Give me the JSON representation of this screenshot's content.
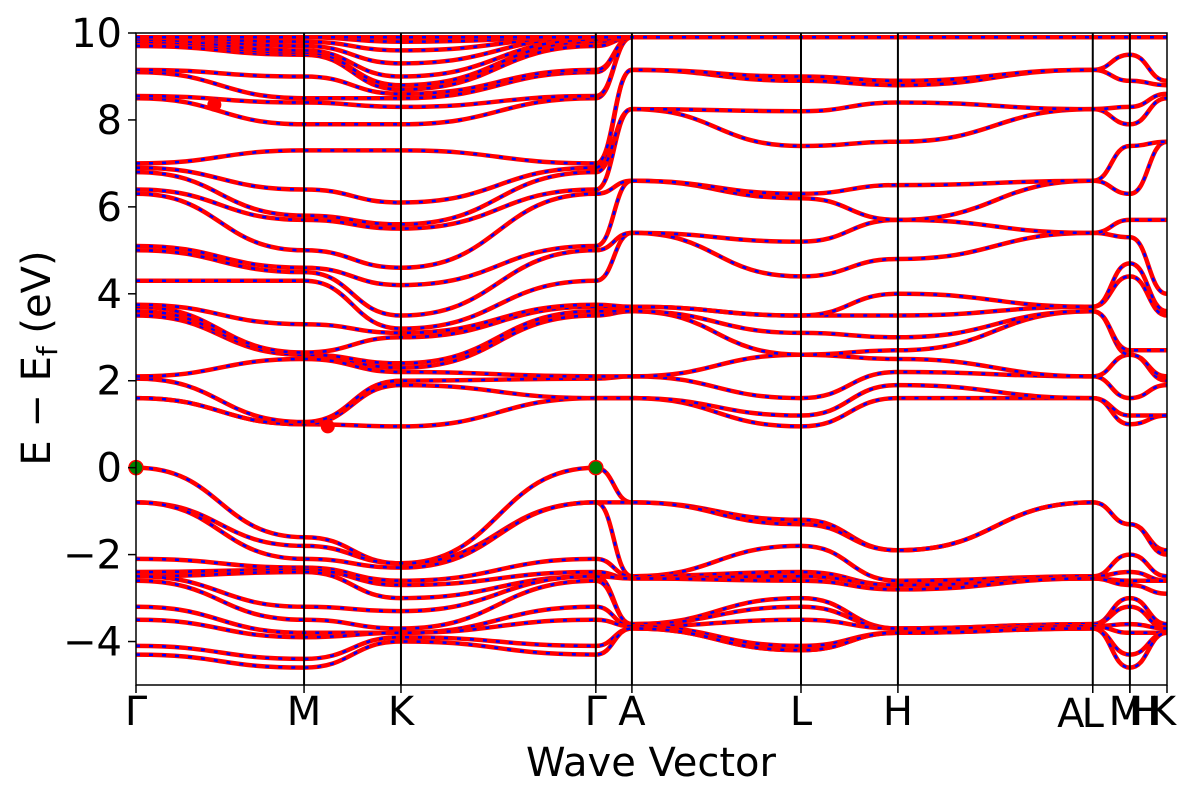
{
  "chart_data": {
    "type": "line",
    "xlabel": "Wave Vector",
    "ylabel": {
      "text": "E − E",
      "subscript": "f",
      "unit": " (eV)"
    },
    "ylim": [
      -5,
      10
    ],
    "yticks": [
      -4,
      -2,
      0,
      2,
      4,
      6,
      8,
      10
    ],
    "ytick_labels": [
      "−4",
      "−2",
      "0",
      "2",
      "4",
      "6",
      "8",
      "10"
    ],
    "xlim": [
      0,
      1
    ],
    "grid": false,
    "legend": "none",
    "colors": {
      "band": "#ff0000",
      "band_overlay": "#0000ff",
      "extremum": "#008000",
      "kpath_line": "#000000"
    },
    "kpoints": [
      {
        "label": "Γ",
        "x": 0.0
      },
      {
        "label": "M",
        "x": 0.163
      },
      {
        "label": "K",
        "x": 0.257
      },
      {
        "label": "Γ",
        "x": 0.446
      },
      {
        "label": "A",
        "x": 0.481
      },
      {
        "label": "L",
        "x": 0.645
      },
      {
        "label": "H",
        "x": 0.739
      },
      {
        "label": "A",
        "x": 0.928
      },
      {
        "label": "L",
        "x": 0.928
      },
      {
        "label": "M",
        "x": 0.964
      },
      {
        "label": "H",
        "x": 0.964
      },
      {
        "label": "K",
        "x": 1.0
      }
    ],
    "kpath_lines_x": [
      0.163,
      0.257,
      0.446,
      0.481,
      0.645,
      0.739,
      0.928,
      0.964
    ],
    "kpath_segments": [
      [
        0,
        0.481
      ],
      [
        0.481,
        0.928
      ],
      [
        0.928,
        0.964
      ],
      [
        0.964,
        1.0
      ]
    ],
    "band_groups": [
      {
        "name": "valence",
        "count": 12,
        "range": [
          -4.6,
          0
        ]
      },
      {
        "name": "conduction",
        "count": 30,
        "range": [
          0.9,
          9.9
        ]
      }
    ],
    "extrema_points": [
      {
        "x": 0.0,
        "y": 0.0
      },
      {
        "x": 0.446,
        "y": 0.0
      }
    ],
    "highlight_points": [
      {
        "x": 0.186,
        "y": 0.95
      },
      {
        "x": 0.076,
        "y": 8.35
      }
    ],
    "band_values_at_kpoints": {
      "valence": [
        [
          0.0,
          -0.8,
          -0.8,
          -2.1,
          -2.4,
          -2.5,
          -2.5,
          -2.6,
          -3.2,
          -3.5,
          -4.1,
          -4.3
        ],
        [
          -1.6,
          -1.8,
          -2.1,
          -2.3,
          -2.35,
          -2.4,
          -3.2,
          -3.5,
          -3.8,
          -3.9,
          -4.4,
          -4.6
        ],
        [
          -2.2,
          -2.2,
          -2.3,
          -2.6,
          -2.7,
          -3.0,
          -3.3,
          -3.7,
          -3.8,
          -3.8,
          -3.9,
          -4.0
        ],
        [
          0.0,
          -0.8,
          -0.8,
          -2.1,
          -2.4,
          -2.5,
          -2.5,
          -2.6,
          -3.2,
          -3.5,
          -4.1,
          -4.3
        ],
        [
          -0.8,
          -0.8,
          -2.5,
          -2.5,
          -2.55,
          -2.55,
          -3.6,
          -3.6,
          -3.65,
          -3.65,
          -3.7,
          -3.7
        ],
        [
          -1.2,
          -1.3,
          -1.8,
          -2.4,
          -2.5,
          -2.6,
          -3.0,
          -3.2,
          -3.5,
          -4.1,
          -4.2,
          -4.2
        ],
        [
          -1.9,
          -1.9,
          -2.6,
          -2.7,
          -2.7,
          -2.8,
          -3.7,
          -3.7,
          -3.7,
          -3.8,
          -3.8,
          -3.8
        ],
        [
          -0.8,
          -0.8,
          -2.5,
          -2.5,
          -2.55,
          -2.55,
          -3.6,
          -3.6,
          -3.65,
          -3.65,
          -3.7,
          -3.7
        ],
        [
          -1.3,
          -1.3,
          -2.0,
          -2.4,
          -2.6,
          -2.7,
          -3.0,
          -3.2,
          -3.6,
          -3.8,
          -4.3,
          -4.6
        ],
        [
          -1.9,
          -2.0,
          -2.5,
          -2.6,
          -2.6,
          -2.9,
          -3.6,
          -3.7,
          -3.7,
          -3.8,
          -3.8,
          -3.8
        ]
      ],
      "conduction": [
        [
          1.6,
          1.6,
          2.05,
          2.1,
          3.5,
          3.6,
          3.7,
          3.75,
          4.3,
          5.0,
          5.1,
          6.3,
          6.4,
          6.8,
          6.9,
          7.0,
          8.5,
          8.55,
          9.1,
          9.15,
          9.7,
          9.8,
          9.85,
          9.9,
          9.9,
          9.9,
          9.9,
          9.9,
          9.9,
          9.9
        ],
        [
          1.0,
          1.0,
          1.05,
          2.5,
          2.6,
          2.6,
          2.65,
          3.3,
          4.3,
          4.5,
          4.6,
          5.0,
          5.7,
          5.8,
          6.4,
          7.3,
          7.9,
          8.4,
          8.5,
          9.0,
          9.5,
          9.55,
          9.6,
          9.7,
          9.8,
          9.9,
          9.9,
          9.9,
          9.9,
          9.9
        ],
        [
          0.95,
          1.9,
          2.0,
          2.2,
          2.3,
          2.4,
          3.0,
          3.1,
          3.2,
          3.5,
          4.2,
          4.6,
          5.5,
          5.6,
          6.1,
          7.3,
          7.9,
          8.3,
          8.5,
          8.6,
          8.7,
          8.8,
          9.0,
          9.3,
          9.6,
          9.8,
          9.9,
          9.9,
          9.9,
          9.9
        ],
        [
          1.6,
          1.6,
          2.05,
          2.1,
          3.5,
          3.6,
          3.7,
          3.75,
          4.3,
          5.0,
          5.1,
          6.3,
          6.4,
          6.8,
          6.9,
          7.0,
          8.5,
          8.55,
          9.1,
          9.15,
          9.7,
          9.8,
          9.85,
          9.9,
          9.9,
          9.9,
          9.9,
          9.9,
          9.9,
          9.9
        ],
        [
          1.6,
          1.6,
          2.1,
          2.1,
          3.6,
          3.6,
          3.7,
          3.7,
          5.4,
          5.4,
          6.6,
          6.6,
          8.25,
          8.25,
          9.15,
          9.15,
          9.9,
          9.9,
          9.9,
          9.9,
          9.9,
          9.9,
          9.9,
          9.9,
          9.9,
          9.9,
          9.9,
          9.9,
          9.9,
          9.9
        ],
        [
          0.95,
          1.2,
          1.6,
          2.6,
          2.6,
          3.1,
          3.5,
          3.5,
          4.4,
          5.2,
          6.2,
          6.3,
          7.4,
          8.2,
          8.9,
          9.0,
          9.9,
          9.9,
          9.9,
          9.9,
          9.9,
          9.9,
          9.9,
          9.9,
          9.9,
          9.9,
          9.9,
          9.9,
          9.9,
          9.9
        ],
        [
          1.6,
          1.9,
          2.2,
          2.5,
          2.7,
          3.0,
          3.5,
          4.0,
          4.8,
          5.7,
          5.7,
          6.5,
          7.5,
          8.4,
          8.8,
          8.9,
          9.9,
          9.9,
          9.9,
          9.9,
          9.9,
          9.9,
          9.9,
          9.9,
          9.9,
          9.9,
          9.9,
          9.9,
          9.9,
          9.9
        ],
        [
          1.6,
          1.6,
          2.1,
          2.1,
          3.6,
          3.6,
          3.7,
          3.7,
          5.4,
          5.4,
          6.6,
          6.6,
          8.25,
          8.25,
          9.15,
          9.15,
          9.9,
          9.9,
          9.9,
          9.9,
          9.9,
          9.9,
          9.9,
          9.9,
          9.9,
          9.9,
          9.9,
          9.9,
          9.9,
          9.9
        ],
        [
          1.0,
          1.2,
          1.6,
          2.6,
          2.6,
          2.7,
          4.4,
          4.7,
          5.3,
          5.7,
          6.3,
          7.4,
          7.9,
          8.3,
          8.9,
          9.5,
          9.9,
          9.9,
          9.9,
          9.9,
          9.9,
          9.9,
          9.9,
          9.9,
          9.9,
          9.9,
          9.9,
          9.9,
          9.9,
          9.9
        ],
        [
          1.2,
          1.2,
          1.9,
          2.0,
          2.1,
          2.7,
          3.5,
          3.6,
          4.0,
          5.7,
          7.5,
          7.5,
          8.5,
          8.6,
          8.8,
          8.9,
          9.9,
          9.9,
          9.9,
          9.9,
          9.9,
          9.9,
          9.9,
          9.9,
          9.9,
          9.9,
          9.9,
          9.9,
          9.9,
          9.9
        ]
      ]
    }
  }
}
